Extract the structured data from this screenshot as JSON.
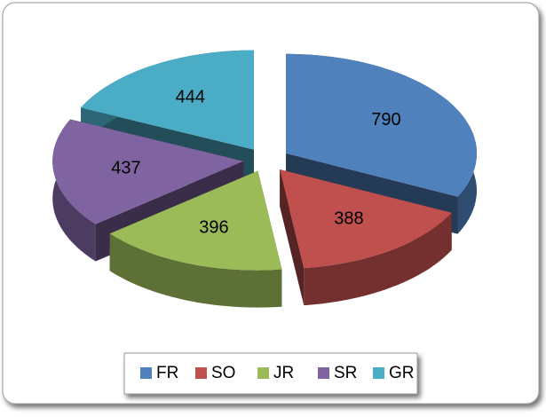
{
  "chart_data": {
    "type": "pie",
    "categories": [
      "FR",
      "SO",
      "JR",
      "SR",
      "GR"
    ],
    "values": [
      790,
      388,
      396,
      437,
      444
    ],
    "colors": [
      "#4f81bd",
      "#c0504d",
      "#9bbb59",
      "#8064a2",
      "#4bacc6"
    ],
    "legend": "bottom"
  }
}
